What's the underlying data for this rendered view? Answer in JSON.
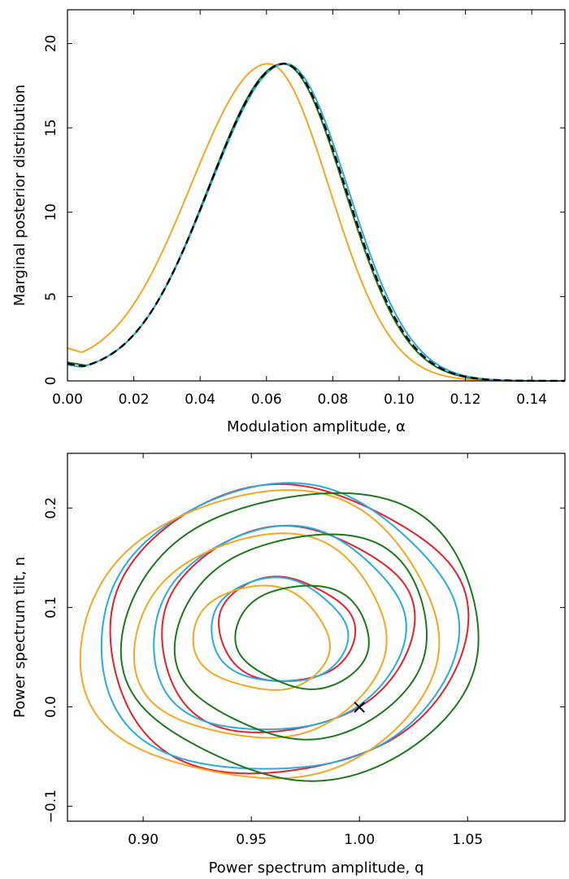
{
  "chart_data": [
    {
      "type": "line",
      "xlabel": "Modulation amplitude, α",
      "ylabel": "Marginal posterior distribution",
      "xlim": [
        0.0,
        0.15
      ],
      "ylim": [
        0,
        22
      ],
      "xticks": [
        "0.00",
        "0.02",
        "0.04",
        "0.06",
        "0.08",
        "0.10",
        "0.12",
        "0.14"
      ],
      "yticks": [
        "0",
        "5",
        "10",
        "15",
        "20"
      ],
      "grid": false,
      "series": [
        {
          "color": "#f5a623",
          "style": "solid",
          "peak_x": 0.0605,
          "peak_y": 18.8,
          "sigma_left": 0.0235,
          "sigma_right": 0.0185,
          "baseline_at_0": 1.25
        },
        {
          "color": "#1a7a1a",
          "style": "solid",
          "peak_x": 0.065,
          "peak_y": 18.8,
          "sigma_left": 0.0225,
          "sigma_right": 0.0185,
          "baseline_at_0": 0.7
        },
        {
          "color": "#29abe2",
          "style": "solid",
          "peak_x": 0.0658,
          "peak_y": 18.8,
          "sigma_left": 0.023,
          "sigma_right": 0.0188,
          "baseline_at_0": 0.6
        },
        {
          "color": "#000000",
          "style": "dashed",
          "peak_x": 0.0653,
          "peak_y": 18.8,
          "sigma_left": 0.0227,
          "sigma_right": 0.0186,
          "baseline_at_0": 0.65
        }
      ]
    },
    {
      "type": "contour",
      "xlabel": "Power spectrum amplitude, q",
      "ylabel": "Power spectrum tilt, n",
      "xlim": [
        0.865,
        1.095
      ],
      "ylim": [
        -0.115,
        0.255
      ],
      "xticks": [
        "0.90",
        "0.95",
        "1.00",
        "1.05"
      ],
      "yticks": [
        "0.0",
        "0.1",
        "0.2"
      ],
      "yticks_bottom": "−0.1",
      "grid": false,
      "marker": {
        "x": 1.0,
        "y": 0.0,
        "symbol": "×"
      },
      "series": [
        {
          "color": "#e8202a",
          "center": [
            0.966,
            0.078
          ],
          "contours": [
            {
              "a": 0.033,
              "b": 0.052
            },
            {
              "a": 0.058,
              "b": 0.108
            },
            {
              "a": 0.083,
              "b": 0.15
            }
          ]
        },
        {
          "color": "#29abe2",
          "center": [
            0.963,
            0.076
          ],
          "contours": [
            {
              "a": 0.033,
              "b": 0.052
            },
            {
              "a": 0.058,
              "b": 0.107
            },
            {
              "a": 0.083,
              "b": 0.149
            }
          ]
        },
        {
          "color": "#f5a623",
          "center": [
            0.955,
            0.068
          ],
          "contours": [
            {
              "a": 0.033,
              "b": 0.052
            },
            {
              "a": 0.058,
              "b": 0.107
            },
            {
              "a": 0.083,
              "b": 0.15
            }
          ]
        },
        {
          "color": "#1a7a1a",
          "center": [
            0.974,
            0.07
          ],
          "contours": [
            {
              "a": 0.032,
              "b": 0.052
            },
            {
              "a": 0.058,
              "b": 0.107
            },
            {
              "a": 0.083,
              "b": 0.149
            }
          ]
        }
      ]
    }
  ]
}
